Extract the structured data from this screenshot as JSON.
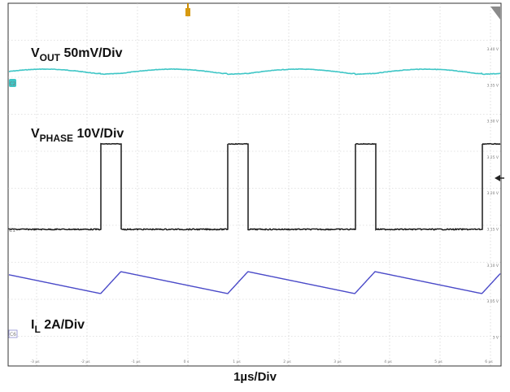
{
  "chart_data": {
    "type": "line",
    "title": "",
    "xlabel": "1µs/Div",
    "x_unit": "µs",
    "xlim": [
      -7,
      7
    ],
    "grid": true,
    "x_tick_labels": [
      "-6 µs",
      "-5 µs",
      "-4 µs",
      "-3 µs",
      "-2 µs",
      "-1 µs",
      "0 s",
      "1 µs",
      "2 µs",
      "3 µs",
      "4 µs",
      "5 µs",
      "6 µs"
    ],
    "right_tick_labels": [
      "3.40 V",
      "3.35 V",
      "3.30 V",
      "3.25 V",
      "3.20 V",
      "3.15 V",
      "3.10 V",
      "3.05 V",
      "3 V"
    ],
    "switching_period_us": 2.52,
    "switch_on_time_us": 0.4,
    "switch_on_starts_us": [
      -4.25,
      -1.72,
      0.8,
      3.32
    ],
    "series": [
      {
        "name": "V",
        "sub": "OUT",
        "scale": "50mV/Div",
        "channel_marker": "C2",
        "color": "#3fc6c6",
        "ripple_mv_pp": 20
      },
      {
        "name": "V",
        "sub": "PHASE",
        "scale": "10V/Div",
        "channel_marker": "C1",
        "color": "#1a1a1a",
        "high_v": 40,
        "low_v": 0
      },
      {
        "name": "I",
        "sub": "L",
        "scale": "2A/Div",
        "channel_marker": "C6",
        "color": "#4a4ac8",
        "ripple_a_pp": 2.4
      }
    ]
  }
}
